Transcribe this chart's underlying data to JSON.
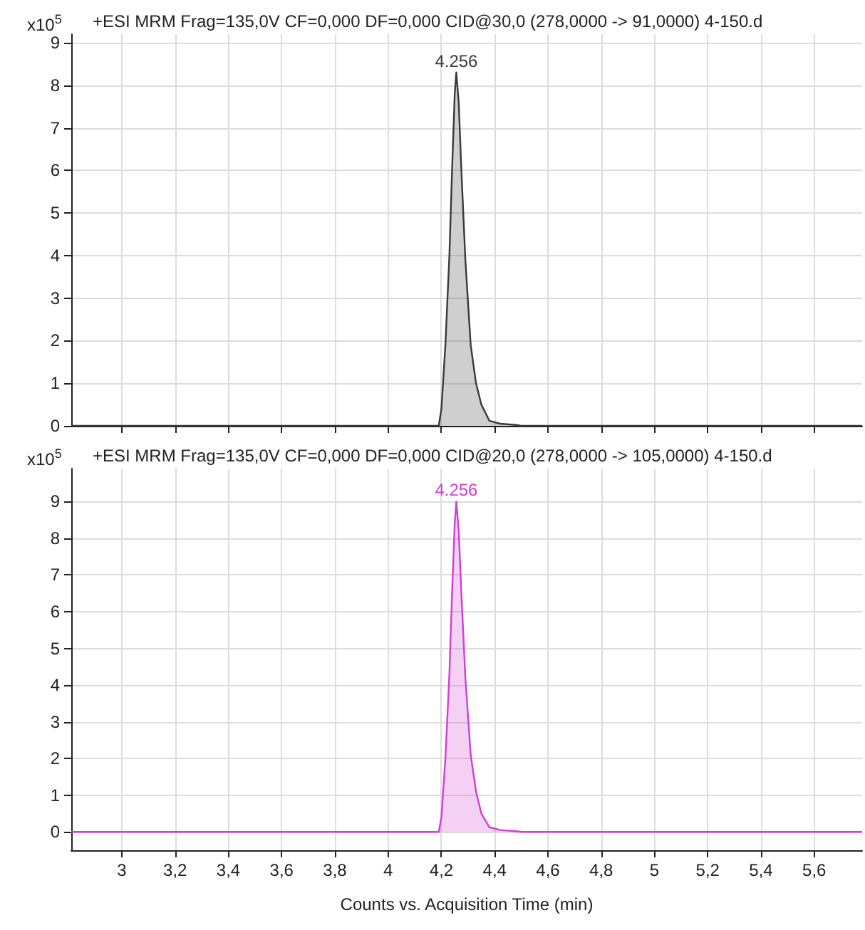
{
  "chart_data": [
    {
      "type": "area",
      "title": "+ESI MRM Frag=135,0V CF=0,000 DF=0,000 CID@30,0 (278,0000 -> 91,0000) 4-150.d",
      "ylabel": "x10$^{5}$",
      "xlim": [
        2.81,
        5.78
      ],
      "ylim": [
        0,
        9.2
      ],
      "yticks": [
        0,
        1,
        2,
        3,
        4,
        5,
        6,
        7,
        8,
        9
      ],
      "xticks": [
        {
          "value": 3,
          "label": null
        },
        {
          "value": 3.2,
          "label": null
        },
        {
          "value": 3.4,
          "label": null
        },
        {
          "value": 3.6,
          "label": null
        },
        {
          "value": 3.8,
          "label": null
        },
        {
          "value": 4,
          "label": null
        },
        {
          "value": 4.2,
          "label": null
        },
        {
          "value": 4.4,
          "label": null
        },
        {
          "value": 4.6,
          "label": null
        },
        {
          "value": 4.8,
          "label": null
        },
        {
          "value": 5,
          "label": null
        },
        {
          "value": 5.2,
          "label": null
        },
        {
          "value": 5.4,
          "label": null
        },
        {
          "value": 5.6,
          "label": null
        }
      ],
      "tick_labels": "y",
      "grid": true,
      "annotations": [
        {
          "text": "4.256",
          "x": 4.256,
          "y": 8.3
        }
      ],
      "series": [
        {
          "color": "#3a3a3a",
          "x": [
            2.81,
            4.19,
            4.2,
            4.215,
            4.23,
            4.24,
            4.25,
            4.256,
            4.265,
            4.275,
            4.29,
            4.31,
            4.33,
            4.35,
            4.38,
            4.42,
            4.48,
            4.5,
            5.78
          ],
          "values": [
            0,
            0,
            0.4,
            1.9,
            4,
            6,
            7.8,
            8.3,
            7.6,
            6,
            3.9,
            1.9,
            1,
            0.5,
            0.12,
            0.05,
            0.02,
            0,
            0
          ]
        }
      ]
    },
    {
      "type": "area",
      "title": "+ESI MRM Frag=135,0V CF=0,000 DF=0,000 CID@20,0 (278,0000 -> 105,0000) 4-150.d",
      "ylabel": "x10$^{5}$",
      "xlabel": "Counts vs. Acquisition Time (min)",
      "xlim": [
        2.81,
        5.78
      ],
      "ylim": [
        -0.5,
        9.9
      ],
      "yticks": [
        0,
        1,
        2,
        3,
        4,
        5,
        6,
        7,
        8,
        9
      ],
      "xticks": [
        3,
        {
          "value": 3.2,
          "label": "3,2"
        },
        {
          "value": 3.4,
          "label": "3,4"
        },
        {
          "value": 3.6,
          "label": "3,6"
        },
        {
          "value": 3.8,
          "label": "3,8"
        },
        4,
        {
          "value": 4.2,
          "label": "4,2"
        },
        {
          "value": 4.4,
          "label": "4,4"
        },
        {
          "value": 4.6,
          "label": "4,6"
        },
        {
          "value": 4.8,
          "label": "4,8"
        },
        5,
        {
          "value": 5.2,
          "label": "5,2"
        },
        {
          "value": 5.4,
          "label": "5,4"
        },
        {
          "value": 5.6,
          "label": "5,6"
        }
      ],
      "grid": true,
      "annotations": [
        {
          "text": "4.256",
          "x": 4.256,
          "y": 9
        }
      ],
      "series": [
        {
          "color": "#d040d0",
          "x": [
            2.81,
            4.19,
            4.2,
            4.215,
            4.23,
            4.24,
            4.25,
            4.256,
            4.265,
            4.275,
            4.29,
            4.31,
            4.33,
            4.35,
            4.38,
            4.42,
            4.48,
            4.5,
            5.78
          ],
          "values": [
            0,
            0,
            0.4,
            2,
            4.3,
            6.5,
            8.4,
            9,
            8.2,
            6.5,
            4.2,
            2.1,
            1.1,
            0.5,
            0.13,
            0.05,
            0.02,
            0,
            0
          ]
        }
      ]
    }
  ]
}
